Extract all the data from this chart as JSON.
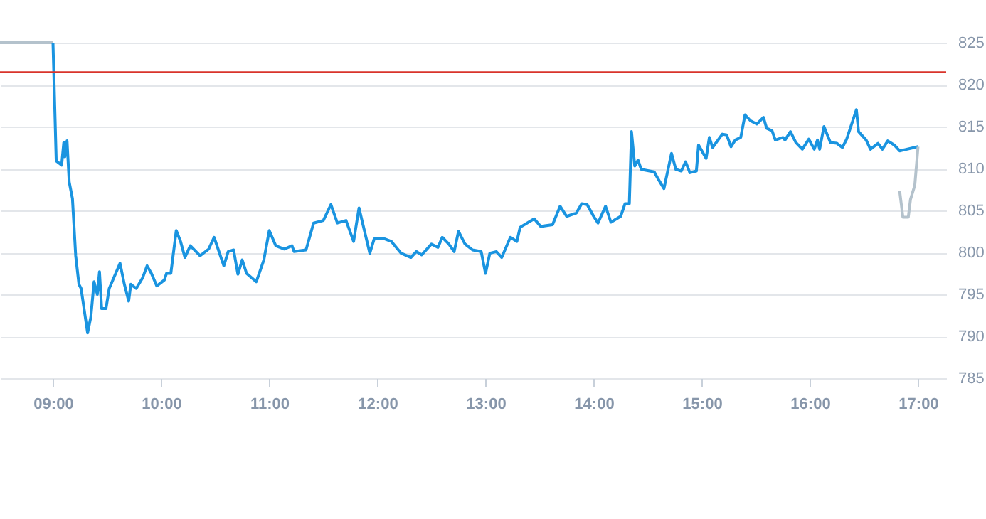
{
  "chart_data": {
    "type": "line",
    "xlim": [
      8.51,
      17.26
    ],
    "ylim": [
      785,
      825
    ],
    "xticks": [
      {
        "value": 9,
        "label": "09:00"
      },
      {
        "value": 10,
        "label": "10:00"
      },
      {
        "value": 11,
        "label": "11:00"
      },
      {
        "value": 12,
        "label": "12:00"
      },
      {
        "value": 13,
        "label": "13:00"
      },
      {
        "value": 14,
        "label": "14:00"
      },
      {
        "value": 15,
        "label": "15:00"
      },
      {
        "value": 16,
        "label": "16:00"
      },
      {
        "value": 17,
        "label": "17:00"
      }
    ],
    "yticks": [
      785,
      790,
      795,
      800,
      805,
      810,
      815,
      820,
      825
    ],
    "grid": "y",
    "marker": "none",
    "line_style": "solid",
    "ref_lines": [
      {
        "axis": "y",
        "value": 821.5,
        "color": "#d9342b"
      }
    ],
    "series": [
      {
        "color": "#b4c2cc",
        "x": [
          8.51,
          9.0
        ],
        "values": [
          825,
          825
        ]
      },
      {
        "color": "#1a94e0",
        "x": [
          9.0,
          9.03,
          9.08,
          9.1,
          9.11,
          9.13,
          9.15,
          9.18,
          9.21,
          9.24,
          9.26,
          9.32,
          9.35,
          9.38,
          9.41,
          9.43,
          9.45,
          9.49,
          9.52,
          9.58,
          9.62,
          9.66,
          9.7,
          9.72,
          9.77,
          9.83,
          9.87,
          9.91,
          9.96,
          10.03,
          10.05,
          10.09,
          10.14,
          10.18,
          10.22,
          10.27,
          10.36,
          10.44,
          10.49,
          10.58,
          10.62,
          10.67,
          10.71,
          10.75,
          10.79,
          10.88,
          10.95,
          11.0,
          11.06,
          11.14,
          11.21,
          11.23,
          11.34,
          11.41,
          11.5,
          11.57,
          11.63,
          11.71,
          11.78,
          11.83,
          11.93,
          11.97,
          12.07,
          12.13,
          12.22,
          12.31,
          12.36,
          12.41,
          12.5,
          12.56,
          12.6,
          12.66,
          12.71,
          12.75,
          12.81,
          12.88,
          12.96,
          13.0,
          13.04,
          13.1,
          13.15,
          13.23,
          13.29,
          13.32,
          13.45,
          13.51,
          13.62,
          13.69,
          13.75,
          13.84,
          13.89,
          13.94,
          14.0,
          14.04,
          14.11,
          14.16,
          14.25,
          14.29,
          14.33,
          14.35,
          14.38,
          14.41,
          14.44,
          14.56,
          14.59,
          14.65,
          14.72,
          14.76,
          14.81,
          14.85,
          14.89,
          14.95,
          14.97,
          15.04,
          15.07,
          15.1,
          15.19,
          15.23,
          15.27,
          15.31,
          15.36,
          15.4,
          15.45,
          15.51,
          15.57,
          15.6,
          15.65,
          15.68,
          15.75,
          15.77,
          15.82,
          15.87,
          15.93,
          15.99,
          16.04,
          16.07,
          16.09,
          16.13,
          16.19,
          16.25,
          16.3,
          16.34,
          16.43,
          16.45,
          16.52,
          16.56,
          16.63,
          16.67,
          16.72,
          16.78,
          16.83,
          17.0
        ],
        "values": [
          825,
          810.9,
          810.4,
          813.1,
          811.4,
          813.3,
          808.4,
          806.4,
          799.6,
          796.2,
          795.7,
          790.4,
          792.3,
          796.5,
          795,
          797.7,
          793.3,
          793.3,
          795.7,
          797.5,
          798.7,
          796.2,
          794.2,
          796.2,
          795.7,
          797,
          798.4,
          797.5,
          796,
          796.7,
          797.5,
          797.5,
          802.6,
          801.3,
          799.4,
          800.8,
          799.6,
          800.4,
          801.8,
          798.4,
          800.1,
          800.3,
          797.4,
          799.1,
          797.5,
          796.5,
          799.1,
          802.6,
          800.8,
          800.4,
          800.8,
          800.1,
          800.3,
          803.5,
          803.8,
          805.7,
          803.5,
          803.8,
          801.3,
          805.3,
          799.9,
          801.6,
          801.6,
          801.3,
          799.9,
          799.4,
          800.1,
          799.7,
          801,
          800.6,
          801.8,
          801,
          800.1,
          802.5,
          801,
          800.3,
          800.1,
          797.5,
          799.9,
          800.1,
          799.4,
          801.8,
          801.3,
          803,
          804,
          803.1,
          803.3,
          805.5,
          804.3,
          804.7,
          805.8,
          805.7,
          804.3,
          803.5,
          805.5,
          803.6,
          804.3,
          805.8,
          805.8,
          814.4,
          810.3,
          811,
          809.9,
          809.6,
          808.9,
          807.6,
          811.8,
          809.9,
          809.7,
          810.8,
          809.5,
          809.7,
          812.8,
          811.2,
          813.7,
          812.5,
          814.1,
          814,
          812.6,
          813.4,
          813.7,
          816.4,
          815.7,
          815.3,
          816.1,
          814.8,
          814.5,
          813.4,
          813.7,
          813.4,
          814.4,
          813.1,
          812.3,
          813.5,
          812.3,
          813.4,
          812.3,
          815,
          813.1,
          813,
          812.5,
          813.5,
          817,
          814.4,
          813.4,
          812.3,
          813,
          812.3,
          813.3,
          812.8,
          812.1,
          812.6
        ]
      },
      {
        "color": "#b4c2cc",
        "x": [
          16.83,
          16.86,
          16.91,
          16.93,
          16.97,
          17.0
        ],
        "values": [
          807.3,
          804.2,
          804.2,
          806.3,
          808,
          812.6
        ]
      }
    ]
  }
}
